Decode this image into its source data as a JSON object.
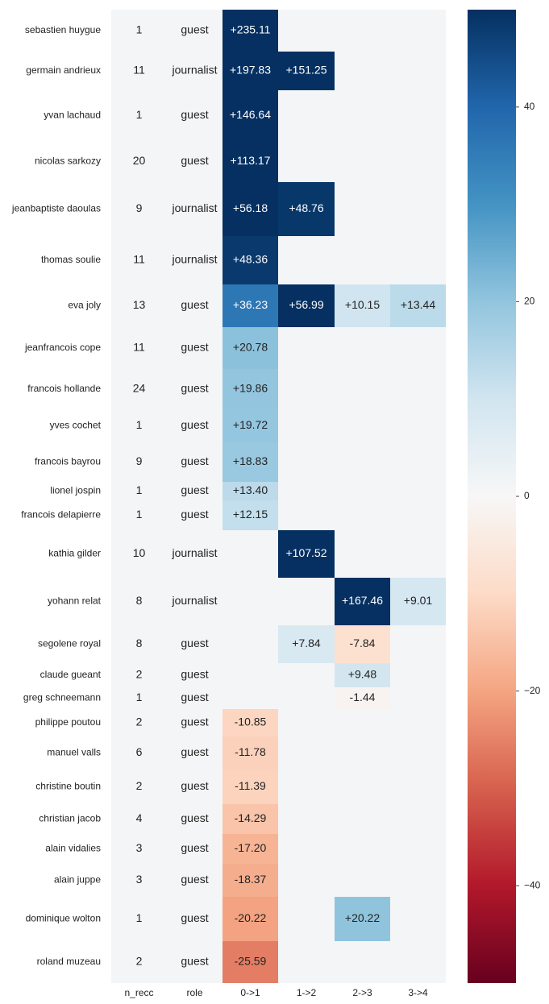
{
  "chart_data": {
    "type": "heatmap",
    "x_labels": [
      "n_recc",
      "role",
      "0->1",
      "1->2",
      "2->3",
      "3->4"
    ],
    "rows": [
      "sebastien huygue",
      "germain andrieux",
      "yvan lachaud",
      "nicolas sarkozy",
      "jeanbaptiste daoulas",
      "thomas soulie",
      "eva joly",
      "jeanfrancois cope",
      "francois hollande",
      "yves cochet",
      "francois bayrou",
      "lionel jospin",
      "francois delapierre",
      "kathia gilder",
      "yohann relat",
      "segolene royal",
      "claude gueant",
      "greg schneemann",
      "philippe poutou",
      "manuel valls",
      "christine boutin",
      "christian jacob",
      "alain vidalies",
      "alain juppe",
      "dominique wolton",
      "roland muzeau"
    ],
    "n_recc": [
      1,
      11,
      1,
      20,
      9,
      11,
      13,
      11,
      24,
      1,
      9,
      1,
      1,
      10,
      8,
      8,
      2,
      1,
      2,
      6,
      2,
      4,
      3,
      3,
      1,
      2
    ],
    "role": [
      "guest",
      "journalist",
      "guest",
      "guest",
      "journalist",
      "journalist",
      "guest",
      "guest",
      "guest",
      "guest",
      "guest",
      "guest",
      "guest",
      "journalist",
      "journalist",
      "guest",
      "guest",
      "guest",
      "guest",
      "guest",
      "guest",
      "guest",
      "guest",
      "guest",
      "guest",
      "guest"
    ],
    "values": [
      [
        235.11,
        null,
        null,
        null
      ],
      [
        197.83,
        151.25,
        null,
        null
      ],
      [
        146.64,
        null,
        null,
        null
      ],
      [
        113.17,
        null,
        null,
        null
      ],
      [
        56.18,
        48.76,
        null,
        null
      ],
      [
        48.36,
        null,
        null,
        null
      ],
      [
        36.23,
        56.99,
        10.15,
        13.44
      ],
      [
        20.78,
        null,
        null,
        null
      ],
      [
        19.86,
        null,
        null,
        null
      ],
      [
        19.72,
        null,
        null,
        null
      ],
      [
        18.83,
        null,
        null,
        null
      ],
      [
        13.4,
        null,
        null,
        null
      ],
      [
        12.15,
        null,
        null,
        null
      ],
      [
        null,
        107.52,
        null,
        null
      ],
      [
        null,
        null,
        167.46,
        9.01
      ],
      [
        null,
        7.84,
        -7.84,
        null
      ],
      [
        null,
        null,
        9.48,
        null
      ],
      [
        null,
        null,
        -1.44,
        null
      ],
      [
        -10.85,
        null,
        null,
        null
      ],
      [
        -11.78,
        null,
        null,
        null
      ],
      [
        -11.39,
        null,
        null,
        null
      ],
      [
        -14.29,
        null,
        null,
        null
      ],
      [
        -17.2,
        null,
        null,
        null
      ],
      [
        -18.37,
        null,
        null,
        null
      ],
      [
        -20.22,
        null,
        20.22,
        null
      ],
      [
        -25.59,
        null,
        null,
        null
      ]
    ],
    "value_labels": [
      [
        "+235.11",
        null,
        null,
        null
      ],
      [
        "+197.83",
        "+151.25",
        null,
        null
      ],
      [
        "+146.64",
        null,
        null,
        null
      ],
      [
        "+113.17",
        null,
        null,
        null
      ],
      [
        "+56.18",
        "+48.76",
        null,
        null
      ],
      [
        "+48.36",
        null,
        null,
        null
      ],
      [
        "+36.23",
        "+56.99",
        "+10.15",
        "+13.44"
      ],
      [
        "+20.78",
        null,
        null,
        null
      ],
      [
        "+19.86",
        null,
        null,
        null
      ],
      [
        "+19.72",
        null,
        null,
        null
      ],
      [
        "+18.83",
        null,
        null,
        null
      ],
      [
        "+13.40",
        null,
        null,
        null
      ],
      [
        "+12.15",
        null,
        null,
        null
      ],
      [
        null,
        "+107.52",
        null,
        null
      ],
      [
        null,
        null,
        "+167.46",
        "+9.01"
      ],
      [
        null,
        "+7.84",
        "-7.84",
        null
      ],
      [
        null,
        null,
        "+9.48",
        null
      ],
      [
        null,
        null,
        "-1.44",
        null
      ],
      [
        "-10.85",
        null,
        null,
        null
      ],
      [
        "-11.78",
        null,
        null,
        null
      ],
      [
        "-11.39",
        null,
        null,
        null
      ],
      [
        "-14.29",
        null,
        null,
        null
      ],
      [
        "-17.20",
        null,
        null,
        null
      ],
      [
        "-18.37",
        null,
        null,
        null
      ],
      [
        "-20.22",
        null,
        "+20.22",
        null
      ],
      [
        "-25.59",
        null,
        null,
        null
      ]
    ],
    "colormap": "RdBu",
    "clim": [
      -50,
      50
    ],
    "cticks": [
      40,
      20,
      0,
      {
        "value": -20,
        "label": "−20"
      },
      {
        "value": -40,
        "label": "−40"
      }
    ]
  }
}
